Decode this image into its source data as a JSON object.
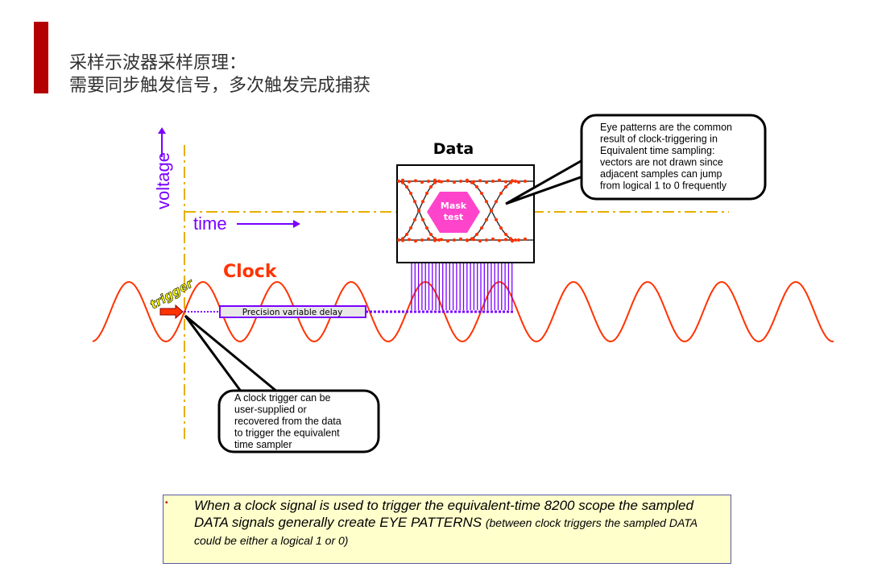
{
  "slide": {
    "title_line1": "采样示波器采样原理：",
    "title_line2": "需要同步触发信号，多次触发完成捕获",
    "accent_color": "#b30000"
  },
  "diagram": {
    "voltage_label": "voltage",
    "time_label": "time",
    "data_label": "Data",
    "clock_label": "Clock",
    "trigger_label": "trigger",
    "delay_label": "Precision variable delay",
    "mask_label_line1": "Mask",
    "mask_label_line2": "test",
    "callout_eye": [
      "Eye patterns are the common",
      "result of clock-triggering in",
      "Equivalent time sampling:",
      "vectors are not drawn since",
      "adjacent samples can jump",
      "from logical 1 to 0 frequently"
    ],
    "callout_clock": [
      "A clock trigger can be",
      "user-supplied or",
      "recovered from the data",
      "to trigger the equivalent",
      "time sampler"
    ],
    "colors": {
      "clock": "#ff3300",
      "axis": "#7a00ff",
      "guide": "#e6b000",
      "mask": "#ff44cc",
      "note_bg": "#ffffcc"
    }
  },
  "note": {
    "main": "When a clock signal is used to trigger the equivalent-time 8200 scope the sampled DATA signals generally create EYE PATTERNS ",
    "small": "(between clock triggers the sampled DATA could be either a logical 1 or 0)"
  }
}
